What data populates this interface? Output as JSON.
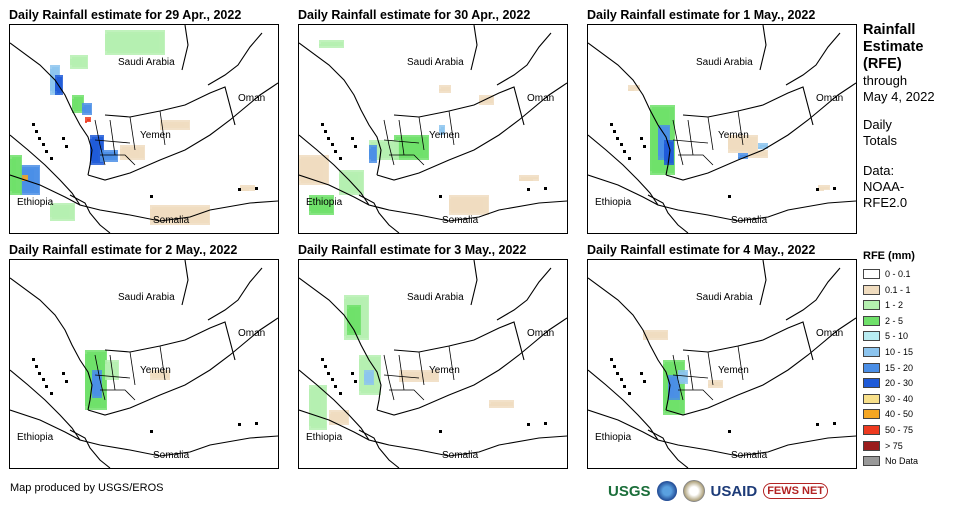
{
  "panels": [
    {
      "title": "Daily Rainfall estimate for 29 Apr., 2022",
      "day": 0
    },
    {
      "title": "Daily Rainfall estimate for 30 Apr., 2022",
      "day": 1
    },
    {
      "title": "Daily Rainfall estimate for 1 May., 2022",
      "day": 2
    },
    {
      "title": "Daily Rainfall estimate for 2 May., 2022",
      "day": 3
    },
    {
      "title": "Daily Rainfall estimate for 3 May., 2022",
      "day": 4
    },
    {
      "title": "Daily Rainfall estimate for 4 May., 2022",
      "day": 5
    }
  ],
  "map_labels": {
    "saudi": "Saudi Arabia",
    "oman": "Oman",
    "yemen": "Yemen",
    "ethiopia": "Ethiopia",
    "somalia": "Somalia"
  },
  "legend": {
    "heading_lines": [
      "Rainfall",
      "Estimate",
      "(RFE)"
    ],
    "through_lines": [
      "through",
      "May 4, 2022"
    ],
    "daily_lines": [
      "Daily",
      "Totals"
    ],
    "data_lines": [
      "Data:",
      "NOAA-",
      "RFE2.0"
    ],
    "scale_title": "RFE (mm)",
    "items": [
      {
        "label": "0 - 0.1",
        "color": "#ffffff"
      },
      {
        "label": "0.1 - 1",
        "color": "#f0dcbf"
      },
      {
        "label": "1 - 2",
        "color": "#b5f0b0"
      },
      {
        "label": "2 - 5",
        "color": "#6fe06a"
      },
      {
        "label": "5 - 10",
        "color": "#b8ecf2"
      },
      {
        "label": "10 - 15",
        "color": "#8cc4ee"
      },
      {
        "label": "15 - 20",
        "color": "#4a8ee6"
      },
      {
        "label": "20 - 30",
        "color": "#1e5ad8"
      },
      {
        "label": "30 - 40",
        "color": "#f8e08a"
      },
      {
        "label": "40 - 50",
        "color": "#f5a623"
      },
      {
        "label": "50 - 75",
        "color": "#ee3a1f"
      },
      {
        "label": "> 75",
        "color": "#9a1c1c"
      },
      {
        "label": "No Data",
        "color": "#999999"
      }
    ]
  },
  "credit": "Map produced by USGS/EROS",
  "logos": {
    "usgs": "USGS",
    "usaid": "USAID",
    "fews": "FEWS NET"
  }
}
